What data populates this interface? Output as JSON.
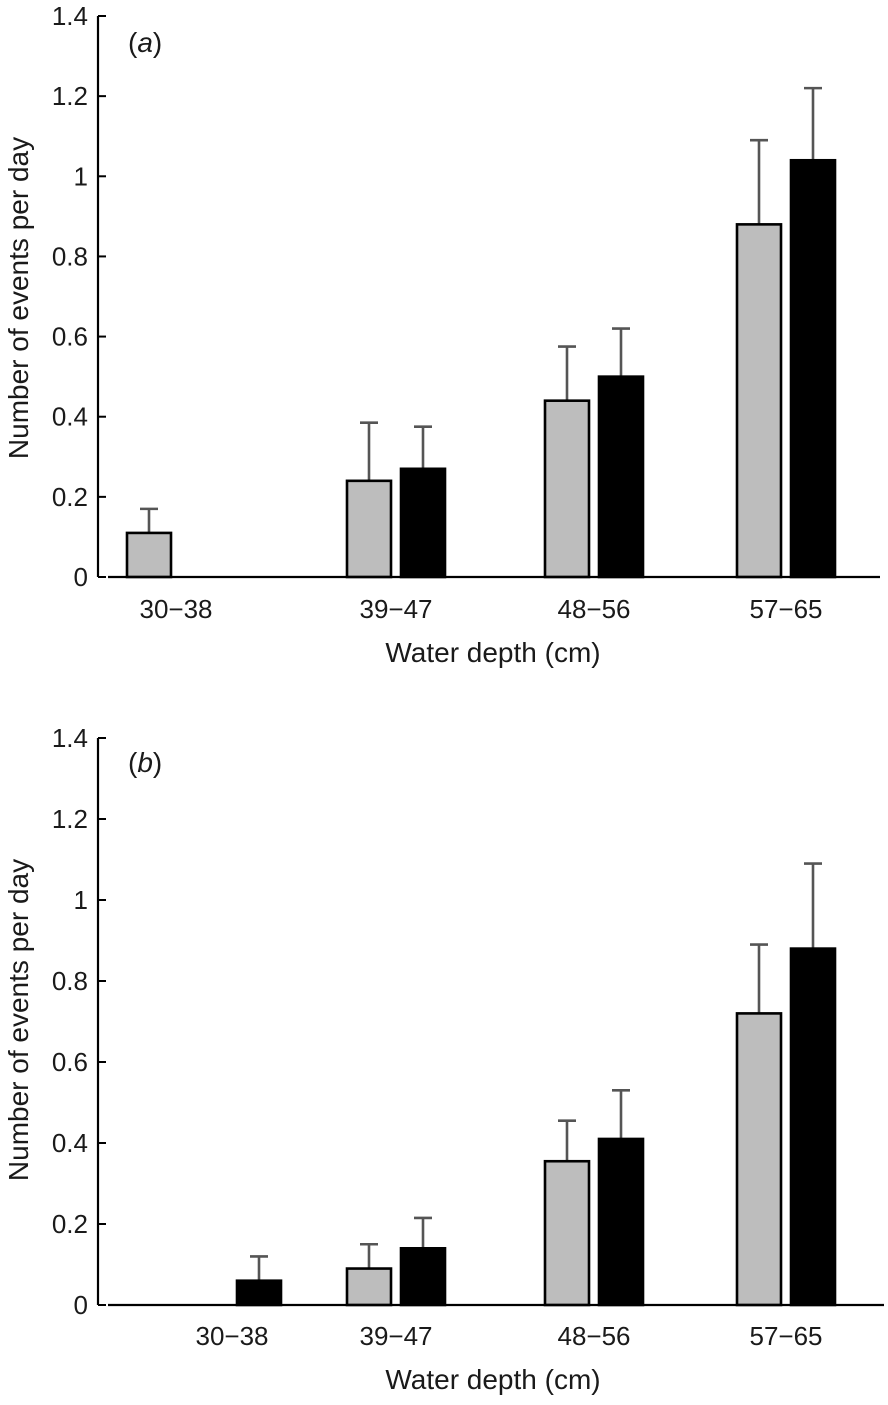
{
  "colors": {
    "series_a": "#bdbdbd",
    "series_b": "#000000",
    "error_bar": "#555555",
    "axis": "#000000"
  },
  "chart_data": [
    {
      "type": "bar",
      "panel_label": "a",
      "xlabel": "Water depth (cm)",
      "ylabel": "Number of events per day",
      "categories": [
        "30−38",
        "39−47",
        "48−56",
        "57−65"
      ],
      "ylim": [
        0,
        1.4
      ],
      "yticks": [
        "0",
        "0.2",
        "0.4",
        "0.6",
        "0.8",
        "1",
        "1.2",
        "1.4"
      ],
      "grid": false,
      "series": [
        {
          "color": "#bdbdbd",
          "values": [
            0.11,
            0.24,
            0.44,
            0.88
          ],
          "errors": [
            0.06,
            0.145,
            0.135,
            0.21
          ]
        },
        {
          "color": "#000000",
          "values": [
            0,
            0.27,
            0.5,
            1.04
          ],
          "errors": [
            0,
            0.105,
            0.12,
            0.18
          ]
        }
      ]
    },
    {
      "type": "bar",
      "panel_label": "b",
      "xlabel": "Water depth (cm)",
      "ylabel": "Number of events per day",
      "categories": [
        "30−38",
        "39−47",
        "48−56",
        "57−65"
      ],
      "ylim": [
        0,
        1.4
      ],
      "yticks": [
        "0",
        "0.2",
        "0.4",
        "0.6",
        "0.8",
        "1",
        "1.2",
        "1.4"
      ],
      "grid": false,
      "series": [
        {
          "color": "#bdbdbd",
          "values": [
            0,
            0.09,
            0.355,
            0.72
          ],
          "errors": [
            0,
            0.06,
            0.1,
            0.17
          ]
        },
        {
          "color": "#000000",
          "values": [
            0.06,
            0.14,
            0.41,
            0.88
          ],
          "errors": [
            0.06,
            0.075,
            0.12,
            0.21
          ]
        }
      ]
    }
  ]
}
